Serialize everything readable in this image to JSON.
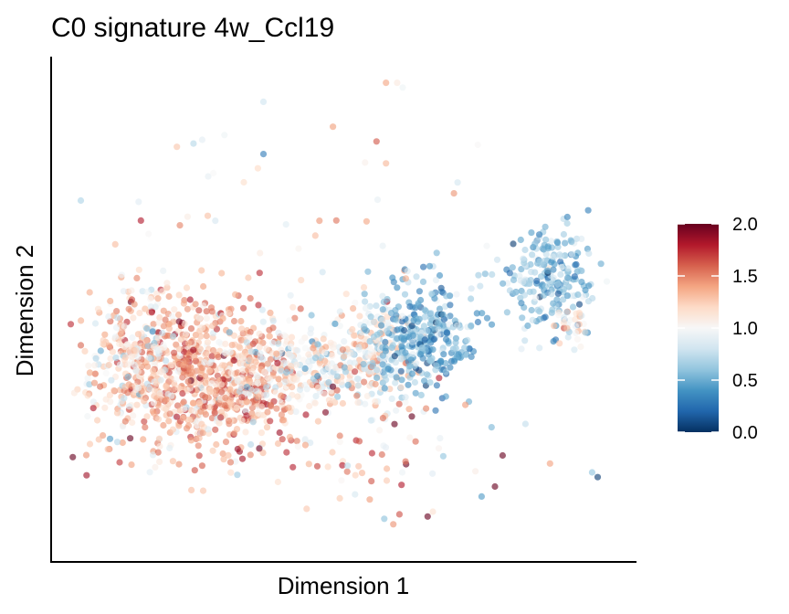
{
  "chart_data": {
    "type": "scatter",
    "title": "C0 signature 4w_Ccl19",
    "xlabel": "Dimension 1",
    "ylabel": "Dimension 2",
    "xlim": [
      0,
      100
    ],
    "ylim": [
      0,
      100
    ],
    "grid": false,
    "x_ticks_shown": false,
    "y_ticks_shown": false,
    "color_scale": {
      "name": "RdBu (reversed)",
      "min": 0.0,
      "max": 2.0,
      "ticks": [
        "0.0",
        "0.5",
        "1.0",
        "1.5",
        "2.0"
      ],
      "stops": [
        "#053061",
        "#2166ac",
        "#4393c3",
        "#92c5de",
        "#d1e5f0",
        "#f7f7f7",
        "#fddbc7",
        "#f4a582",
        "#d6604d",
        "#b2182b",
        "#67001f"
      ]
    },
    "legend_position": "right",
    "clusters": [
      {
        "cx": 22,
        "cy": 36,
        "sx": 9,
        "sy": 9,
        "n": 700,
        "mean": 1.35,
        "sd": 0.22
      },
      {
        "cx": 12,
        "cy": 40,
        "sx": 4,
        "sy": 8,
        "n": 170,
        "mean": 1.15,
        "sd": 0.25
      },
      {
        "cx": 30,
        "cy": 32,
        "sx": 6,
        "sy": 4,
        "n": 220,
        "mean": 1.3,
        "sd": 0.3
      },
      {
        "cx": 43,
        "cy": 38,
        "sx": 7,
        "sy": 3.5,
        "n": 260,
        "mean": 1.0,
        "sd": 0.25
      },
      {
        "cx": 55,
        "cy": 40,
        "sx": 4,
        "sy": 6,
        "n": 200,
        "mean": 1.05,
        "sd": 0.3
      },
      {
        "cx": 64,
        "cy": 43,
        "sx": 5,
        "sy": 6,
        "n": 330,
        "mean": 0.5,
        "sd": 0.2
      },
      {
        "cx": 86,
        "cy": 56,
        "sx": 4,
        "sy": 5,
        "n": 220,
        "mean": 0.55,
        "sd": 0.2
      },
      {
        "cx": 90,
        "cy": 46,
        "sx": 2,
        "sy": 2,
        "n": 30,
        "mean": 1.1,
        "sd": 0.3
      },
      {
        "cx": 50,
        "cy": 20,
        "sx": 14,
        "sy": 6,
        "n": 90,
        "mean": 1.4,
        "sd": 0.35
      },
      {
        "cx": 40,
        "cy": 65,
        "sx": 20,
        "sy": 14,
        "n": 45,
        "mean": 1.0,
        "sd": 0.35
      }
    ],
    "points": [
      {
        "x": 57,
        "y": 97,
        "v": 1.4
      },
      {
        "x": 59,
        "y": 97,
        "v": 1.1
      },
      {
        "x": 60,
        "y": 96,
        "v": 0.95
      },
      {
        "x": 35,
        "y": 93,
        "v": 0.8
      },
      {
        "x": 24,
        "y": 85,
        "v": 0.9
      },
      {
        "x": 28,
        "y": 86,
        "v": 0.95
      },
      {
        "x": 35,
        "y": 82,
        "v": 0.3
      },
      {
        "x": 34,
        "y": 79,
        "v": 1.2
      },
      {
        "x": 26,
        "y": 78,
        "v": 1.0
      },
      {
        "x": 13,
        "y": 68,
        "v": 1.8
      },
      {
        "x": 20,
        "y": 67,
        "v": 1.5
      },
      {
        "x": 25,
        "y": 69,
        "v": 1.3
      },
      {
        "x": 95,
        "y": 14,
        "v": 0.05
      },
      {
        "x": 94,
        "y": 15,
        "v": 0.6
      }
    ]
  }
}
